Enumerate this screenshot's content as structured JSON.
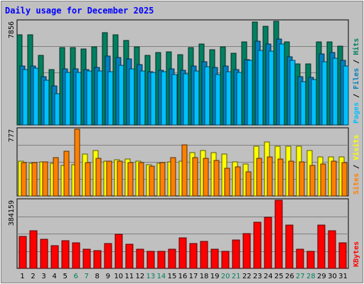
{
  "chart_data": {
    "type": "bar",
    "title": "Daily usage for December 2025",
    "x": [
      "1",
      "2",
      "3",
      "4",
      "5",
      "6",
      "7",
      "8",
      "9",
      "10",
      "11",
      "12",
      "13",
      "14",
      "15",
      "16",
      "17",
      "18",
      "19",
      "20",
      "21",
      "22",
      "23",
      "24",
      "25",
      "26",
      "27",
      "28",
      "29",
      "30",
      "31"
    ],
    "weekend_days": [
      "6",
      "7",
      "13",
      "14",
      "20",
      "21",
      "27",
      "28"
    ],
    "panels": [
      {
        "id": "hits-files-pages",
        "max_label": "7856",
        "max": 7856,
        "labels": [
          {
            "text": "Pages",
            "color": "#00c0ff"
          },
          {
            "text": "Files",
            "color": "#0080c0"
          },
          {
            "text": "Hits",
            "color": "#008060"
          }
        ],
        "series": [
          {
            "name": "Hits",
            "color": "#008060",
            "values": [
              6860,
              6860,
              5270,
              4200,
              5840,
              5840,
              5740,
              5940,
              7020,
              6860,
              6430,
              5900,
              5290,
              5480,
              5530,
              5330,
              5840,
              6120,
              5680,
              5900,
              5420,
              6320,
              7820,
              7480,
              7840,
              6320,
              4640,
              4640,
              6320,
              6320,
              5950
            ]
          },
          {
            "name": "Files",
            "color": "#0080c0",
            "values": [
              4480,
              4480,
              3670,
              2960,
              4250,
              4250,
              4200,
              4380,
              5230,
              5110,
              4980,
              4570,
              4060,
              4130,
              4250,
              4140,
              4440,
              4780,
              4340,
              4480,
              4200,
              4970,
              6360,
              6130,
              6530,
              5180,
              3660,
              3580,
              5400,
              5470,
              4880
            ]
          },
          {
            "name": "Pages",
            "color": "#00c0ff",
            "values": [
              4220,
              4280,
              3410,
              2380,
              3970,
              3970,
              4110,
              4110,
              4020,
              4520,
              4270,
              4110,
              3990,
              4060,
              3810,
              3900,
              4110,
              4410,
              3800,
              4020,
              3970,
              4870,
              5670,
              5580,
              6110,
              4900,
              3280,
              3450,
              4780,
              5050,
              4470
            ]
          }
        ]
      },
      {
        "id": "visits-sites",
        "max_label": "777",
        "max": 777,
        "labels": [
          {
            "text": "Sites",
            "color": "#ff8000"
          },
          {
            "text": "Visits",
            "color": "#ffff00"
          }
        ],
        "series": [
          {
            "name": "Visits",
            "color": "#ffff00",
            "values": [
              407,
              378,
              395,
              378,
              355,
              362,
              485,
              528,
              406,
              421,
              431,
              408,
              362,
              380,
              397,
              408,
              502,
              529,
              502,
              485,
              393,
              371,
              582,
              628,
              582,
              582,
              582,
              533,
              454,
              456,
              456
            ]
          },
          {
            "name": "Sites",
            "color": "#ff8000",
            "values": [
              389,
              386,
              395,
              444,
              520,
              777,
              391,
              434,
              403,
              409,
              386,
              389,
              345,
              386,
              444,
              595,
              443,
              437,
              414,
              325,
              342,
              278,
              434,
              452,
              433,
              403,
              396,
              355,
              376,
              409,
              385
            ]
          }
        ]
      },
      {
        "id": "kbytes",
        "max_label": "384159",
        "max": 384159,
        "labels": [
          {
            "text": "KBytes",
            "color": "#ff0000"
          }
        ],
        "series": [
          {
            "name": "KBytes",
            "color": "#ff0000",
            "values": [
              180900,
              210400,
              163100,
              129700,
              157300,
              142500,
              109700,
              99800,
              141600,
              190400,
              134400,
              108200,
              96400,
              96400,
              108200,
              170600,
              141600,
              150900,
              107200,
              97600,
              160100,
              195300,
              260300,
              287100,
              384159,
              243800,
              108200,
              96400,
              243800,
              210400,
              142500
            ]
          }
        ]
      }
    ]
  },
  "colors": {
    "page_bg": "#c0c0c0",
    "plot_bg": "#c0c0c0",
    "title": "#0000ff",
    "weekday_tick": "#000000",
    "weekend_tick": "#00805c"
  }
}
